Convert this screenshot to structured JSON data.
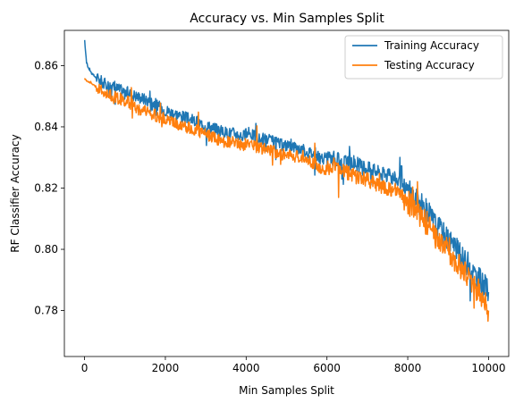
{
  "chart_data": {
    "type": "line",
    "title": "Accuracy vs. Min Samples Split",
    "xlabel": "Min Samples Split",
    "ylabel": "RF Classifier Accuracy",
    "xlim": [
      -500,
      10500
    ],
    "ylim": [
      0.765,
      0.8715
    ],
    "xticks": [
      0,
      2000,
      4000,
      6000,
      8000,
      10000
    ],
    "xtick_labels": [
      "0",
      "2000",
      "4000",
      "6000",
      "8000",
      "10000"
    ],
    "yticks": [
      0.78,
      0.8,
      0.82,
      0.84,
      0.86
    ],
    "ytick_labels": [
      "0.78",
      "0.80",
      "0.82",
      "0.84",
      "0.86"
    ],
    "grid": false,
    "legend_position": "upper-right",
    "series": [
      {
        "name": "Training Accuracy",
        "color": "#1f77b4",
        "x": [
          2,
          50,
          100,
          200,
          300,
          400,
          500,
          700,
          900,
          1100,
          1300,
          1500,
          1700,
          1900,
          2100,
          2300,
          2500,
          2700,
          2900,
          3100,
          3300,
          3500,
          3700,
          3900,
          4100,
          4300,
          4500,
          4700,
          4900,
          5100,
          5300,
          5500,
          5700,
          5900,
          6100,
          6300,
          6500,
          6700,
          6900,
          7100,
          7300,
          7500,
          7700,
          7900,
          8100,
          8300,
          8500,
          8700,
          8900,
          9100,
          9300,
          9500,
          9700,
          9800,
          9900,
          10000
        ],
        "y": [
          0.868,
          0.861,
          0.859,
          0.857,
          0.856,
          0.855,
          0.854,
          0.853,
          0.852,
          0.851,
          0.85,
          0.849,
          0.848,
          0.846,
          0.845,
          0.844,
          0.843,
          0.842,
          0.841,
          0.84,
          0.839,
          0.838,
          0.838,
          0.837,
          0.838,
          0.836,
          0.836,
          0.835,
          0.834,
          0.834,
          0.833,
          0.832,
          0.831,
          0.829,
          0.83,
          0.829,
          0.828,
          0.828,
          0.827,
          0.826,
          0.825,
          0.824,
          0.823,
          0.821,
          0.818,
          0.815,
          0.812,
          0.808,
          0.805,
          0.802,
          0.798,
          0.795,
          0.791,
          0.79,
          0.788,
          0.786
        ]
      },
      {
        "name": "Testing Accuracy",
        "color": "#ff7f0e",
        "x": [
          2,
          50,
          100,
          200,
          300,
          400,
          500,
          700,
          900,
          1100,
          1300,
          1500,
          1700,
          1900,
          2100,
          2300,
          2500,
          2700,
          2900,
          3100,
          3300,
          3500,
          3700,
          3900,
          4100,
          4300,
          4500,
          4700,
          4900,
          5100,
          5300,
          5500,
          5700,
          5900,
          6100,
          6300,
          6500,
          6700,
          6900,
          7100,
          7300,
          7500,
          7700,
          7900,
          8100,
          8300,
          8500,
          8700,
          8900,
          9100,
          9300,
          9500,
          9700,
          9800,
          9900,
          10000
        ],
        "y": [
          0.856,
          0.855,
          0.855,
          0.854,
          0.853,
          0.852,
          0.851,
          0.85,
          0.849,
          0.848,
          0.846,
          0.845,
          0.844,
          0.843,
          0.842,
          0.841,
          0.84,
          0.839,
          0.838,
          0.837,
          0.836,
          0.835,
          0.835,
          0.834,
          0.835,
          0.833,
          0.833,
          0.832,
          0.831,
          0.831,
          0.83,
          0.829,
          0.828,
          0.826,
          0.827,
          0.826,
          0.825,
          0.824,
          0.823,
          0.822,
          0.821,
          0.82,
          0.819,
          0.817,
          0.814,
          0.811,
          0.808,
          0.804,
          0.801,
          0.798,
          0.794,
          0.791,
          0.787,
          0.786,
          0.783,
          0.78
        ]
      }
    ]
  }
}
